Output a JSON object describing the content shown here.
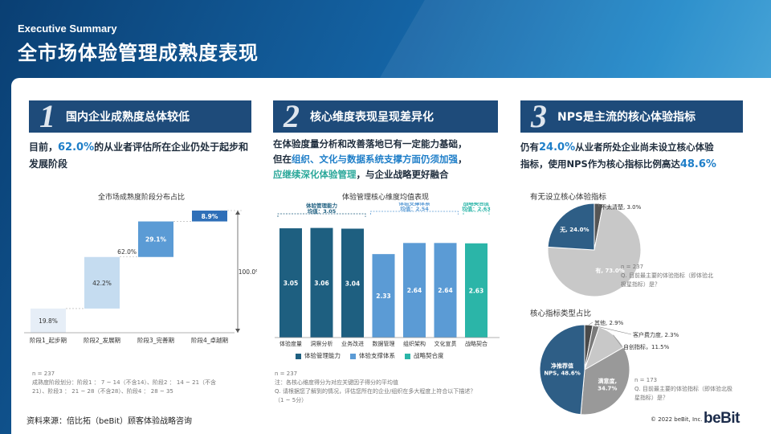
{
  "header": {
    "subtitle": "Executive Summary",
    "title": "全市场体验管理成熟度表现"
  },
  "panels": [
    {
      "number": "1",
      "heading": "国内企业成熟度总体较低",
      "lead_pre": "目前，",
      "lead_hl": "62.0%",
      "lead_post": "的从业者评估所在企业仍处于起步和发展阶段",
      "chart_title": "全市场成熟度阶段分布占比",
      "note_n": "n = 237",
      "note_1": "成熟度阶段划分：阶段1 ： 7 ~ 14（不含14）、阶段2 ： 14 ~ 21（不含",
      "note_2": "21）、阶段3 ： 21 ~ 28（不含28）、阶段4 ： 28 ~ 35"
    },
    {
      "number": "2",
      "heading": "核心维度表现呈现差异化",
      "lead_1": "在体验度量分析和改善落地已有一定能力基础，",
      "lead_2_pre": "但在",
      "lead_2_hl1": "组织",
      "lead_2_mid": "、",
      "lead_2_hl2": "文化与数据系统支撑方面仍须加强",
      "lead_2_post": "，",
      "lead_3_pre": "应继续深化体验管理",
      "lead_3_post": "，与企业战略更好融合",
      "chart_title": "体验管理核心维度均值表现",
      "note_n": "n = 237",
      "note_1": "注：各核心维度得分为对应关键因子得分的平均值",
      "note_2": "Q. 请根据您了解到的情况，评估您所在的企业/组织在多大程度上符合以下描述？",
      "note_3": "（1 ~ 5分）"
    },
    {
      "number": "3",
      "heading": "NPS是主流的核心体验指标",
      "lead_1_pre": "仍有",
      "lead_1_hl": "24.0%",
      "lead_1_post": "从业者所处企业尚未设立核心体验",
      "lead_2_pre": "指标，使用NPS作为核心指标比例高达",
      "lead_2_hl": "48.6%",
      "pie1_title": "有无设立核心体验指标",
      "pie1_note_n": "n = 237",
      "pie1_note_q": "Q. 目前最主要的体验指标（即体验北",
      "pie1_note_q2": "极星指标）是？",
      "pie2_title": "核心指标类型占比",
      "pie2_note_n": "n = 173",
      "pie2_note_q": "Q. 目前最主要的体验指标（即体验北极",
      "pie2_note_q2": "星指标）是？"
    }
  ],
  "chart_data": [
    {
      "type": "bar",
      "subtype": "waterfall",
      "title": "全市场成熟度阶段分布占比",
      "categories": [
        "阶段1_起步期",
        "阶段2_发展期",
        "阶段3_完善期",
        "阶段4_卓越期"
      ],
      "values": [
        19.8,
        42.2,
        29.1,
        8.9
      ],
      "value_labels": [
        "19.8%",
        "42.2%",
        "29.1%",
        "8.9%"
      ],
      "subtotal_label": "62.0%",
      "total_label": "100.0%",
      "ylim": [
        0,
        100
      ],
      "colors": [
        "#e6eef7",
        "#c5dcf0",
        "#5b9bd5",
        "#2f6fb8"
      ]
    },
    {
      "type": "bar",
      "title": "体验管理核心维度均值表现",
      "categories": [
        "体验度量",
        "洞察分析",
        "业务改进",
        "数据管理",
        "组织架构",
        "文化宣贯",
        "战略契合"
      ],
      "values": [
        3.05,
        3.06,
        3.04,
        2.33,
        2.64,
        2.64,
        2.63
      ],
      "value_labels": [
        "3.05",
        "3.06",
        "3.04",
        "2.33",
        "2.64",
        "2.64",
        "2.63"
      ],
      "groups": [
        {
          "name": "体验管理能力",
          "mean_label": "均值：3.05",
          "color": "#1e5f80",
          "indices": [
            0,
            1,
            2
          ]
        },
        {
          "name": "体验支撑体系",
          "mean_label": "均值：2.54",
          "color": "#5b9bd5",
          "indices": [
            3,
            4,
            5
          ]
        },
        {
          "name": "战略契合度",
          "mean_label": "均值：2.63",
          "color": "#2bb5a8",
          "indices": [
            6
          ]
        }
      ],
      "ylim": [
        0,
        3.5
      ]
    },
    {
      "type": "pie",
      "title": "有无设立核心体验指标",
      "labels": [
        "有",
        "无",
        "不太清楚"
      ],
      "values": [
        73.0,
        24.0,
        3.0
      ],
      "value_labels": [
        "有, 73.0%",
        "无, 24.0%",
        "不太清楚, 3.0%"
      ],
      "colors": [
        "#c8c8c8",
        "#2e5e86",
        "#555555"
      ]
    },
    {
      "type": "pie",
      "title": "核心指标类型占比",
      "labels": [
        "净推荐值NPS",
        "满意度",
        "自创指标",
        "客户费力度",
        "其他"
      ],
      "values": [
        48.6,
        34.7,
        11.5,
        2.3,
        2.9
      ],
      "value_labels": [
        "净推荐值 NPS, 48.6%",
        "满意度, 34.7%",
        "自创指标，11.5%",
        "客户费力度, 2.3%",
        "其他, 2.9%"
      ],
      "colors": [
        "#2e5e86",
        "#999999",
        "#c8c8c8",
        "#7a7a7a",
        "#4a4a4a"
      ]
    }
  ],
  "footer": {
    "source": "资料来源：倍比拓（beBit）顾客体验战略咨询",
    "copyright": "© 2022 beBit, Inc.",
    "logo": "beBit"
  }
}
